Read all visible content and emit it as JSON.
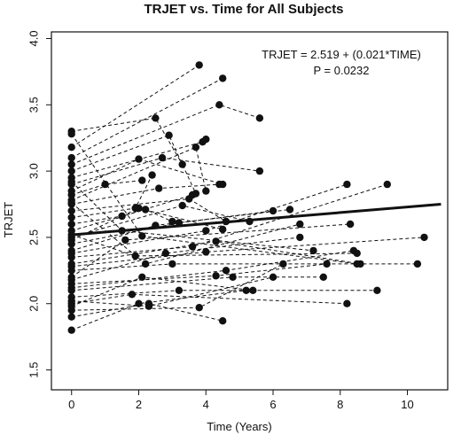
{
  "chart_data": {
    "type": "line",
    "title": "TRJET vs. Time for All Subjects",
    "xlabel": "Time (Years)",
    "ylabel": "TRJET",
    "xlim": [
      -0.6,
      11.2
    ],
    "ylim": [
      1.35,
      4.05
    ],
    "x_ticks": [
      0,
      2,
      4,
      6,
      8,
      10
    ],
    "y_ticks": [
      1.5,
      2.0,
      2.5,
      3.0,
      3.5,
      4.0
    ],
    "x_tick_labels": [
      "0",
      "2",
      "4",
      "6",
      "8",
      "10"
    ],
    "y_tick_labels": [
      "1.5",
      "2.0",
      "2.5",
      "3.0",
      "3.5",
      "4.0"
    ],
    "annotations": [
      "TRJET = 2.519 + (0.021*TIME)",
      "P = 0.0232"
    ],
    "regression": {
      "intercept": 2.519,
      "slope": 0.021,
      "x_range": [
        0,
        11
      ]
    },
    "subjects": [
      [
        [
          0,
          3.3
        ],
        [
          2.5,
          3.4
        ],
        [
          3.3,
          3.05
        ]
      ],
      [
        [
          0,
          3.18
        ],
        [
          3.8,
          3.8
        ]
      ],
      [
        [
          0,
          3.1
        ],
        [
          4.5,
          3.7
        ]
      ],
      [
        [
          0,
          3.05
        ],
        [
          4.4,
          3.5
        ],
        [
          5.6,
          3.4
        ]
      ],
      [
        [
          0,
          3.0
        ],
        [
          2.9,
          3.27
        ],
        [
          3.7,
          2.83
        ]
      ],
      [
        [
          0,
          2.95
        ],
        [
          3.9,
          3.22
        ],
        [
          4.0,
          3.24
        ]
      ],
      [
        [
          0,
          2.9
        ],
        [
          2.7,
          3.1
        ],
        [
          5.6,
          3.0
        ]
      ],
      [
        [
          0,
          2.85
        ],
        [
          2.0,
          3.09
        ],
        [
          4.5,
          2.9
        ]
      ],
      [
        [
          0,
          2.82
        ],
        [
          1.0,
          2.9
        ],
        [
          2.1,
          2.93
        ]
      ],
      [
        [
          0,
          2.78
        ],
        [
          3.7,
          3.18
        ],
        [
          4.0,
          2.85
        ]
      ],
      [
        [
          0,
          2.75
        ],
        [
          2.6,
          2.87
        ],
        [
          4.4,
          2.9
        ]
      ],
      [
        [
          0,
          2.7
        ],
        [
          3.5,
          2.79
        ],
        [
          4.6,
          2.62
        ]
      ],
      [
        [
          0,
          2.65
        ],
        [
          1.9,
          2.72
        ],
        [
          2.4,
          2.97
        ]
      ],
      [
        [
          0,
          2.6
        ],
        [
          1.5,
          2.66
        ],
        [
          3.6,
          2.82
        ]
      ],
      [
        [
          0,
          2.55
        ],
        [
          2.2,
          2.71
        ],
        [
          3.0,
          2.62
        ]
      ],
      [
        [
          0,
          2.5
        ],
        [
          3.3,
          2.74
        ],
        [
          5.3,
          2.62
        ]
      ],
      [
        [
          0,
          2.48
        ],
        [
          2.0,
          2.72
        ],
        [
          4.5,
          2.56
        ]
      ],
      [
        [
          0,
          2.45
        ],
        [
          3.2,
          2.61
        ],
        [
          6.0,
          2.7
        ]
      ],
      [
        [
          0,
          2.4
        ],
        [
          2.5,
          2.59
        ],
        [
          6.5,
          2.71
        ]
      ],
      [
        [
          0,
          2.38
        ],
        [
          4.0,
          2.55
        ],
        [
          8.2,
          2.9
        ]
      ],
      [
        [
          0,
          2.35
        ],
        [
          3.6,
          2.43
        ],
        [
          9.4,
          2.9
        ]
      ],
      [
        [
          0,
          2.3
        ],
        [
          4.3,
          2.47
        ],
        [
          8.6,
          2.3
        ]
      ],
      [
        [
          0,
          2.28
        ],
        [
          4.0,
          2.39
        ],
        [
          10.5,
          2.5
        ]
      ],
      [
        [
          0,
          2.25
        ],
        [
          3.0,
          2.3
        ],
        [
          10.3,
          2.3
        ]
      ],
      [
        [
          0,
          2.2
        ],
        [
          1.6,
          2.48
        ],
        [
          8.3,
          2.6
        ]
      ],
      [
        [
          0,
          2.18
        ],
        [
          2.8,
          2.38
        ],
        [
          6.8,
          2.5
        ]
      ],
      [
        [
          0,
          2.15
        ],
        [
          4.3,
          2.21
        ],
        [
          7.6,
          2.3
        ]
      ],
      [
        [
          0,
          2.12
        ],
        [
          4.6,
          2.25
        ],
        [
          8.4,
          2.4
        ]
      ],
      [
        [
          0,
          2.1
        ],
        [
          4.8,
          2.2
        ],
        [
          7.5,
          2.2
        ]
      ],
      [
        [
          0,
          2.05
        ],
        [
          3.2,
          2.1
        ],
        [
          9.1,
          2.1
        ]
      ],
      [
        [
          0,
          2.02
        ],
        [
          2.3,
          1.98
        ],
        [
          6.0,
          2.2
        ]
      ],
      [
        [
          0,
          2.0
        ],
        [
          1.8,
          2.07
        ],
        [
          8.2,
          2.0
        ]
      ],
      [
        [
          0,
          1.98
        ],
        [
          2.1,
          2.2
        ],
        [
          5.4,
          2.1
        ]
      ],
      [
        [
          0,
          1.95
        ],
        [
          3.8,
          1.97
        ],
        [
          6.3,
          2.3
        ]
      ],
      [
        [
          0,
          1.9
        ],
        [
          2.3,
          2.0
        ],
        [
          4.5,
          1.87
        ]
      ],
      [
        [
          0,
          1.8
        ],
        [
          2.0,
          2.0
        ],
        [
          5.2,
          2.1
        ]
      ],
      [
        [
          0,
          3.28
        ],
        [
          2.1,
          2.51
        ],
        [
          8.5,
          2.3
        ]
      ],
      [
        [
          0,
          2.92
        ],
        [
          1.5,
          2.55
        ],
        [
          7.2,
          2.4
        ]
      ],
      [
        [
          0,
          2.52
        ],
        [
          1.9,
          2.36
        ],
        [
          8.5,
          2.38
        ]
      ],
      [
        [
          0,
          2.76
        ],
        [
          2.2,
          2.3
        ],
        [
          6.8,
          2.6
        ]
      ]
    ]
  }
}
